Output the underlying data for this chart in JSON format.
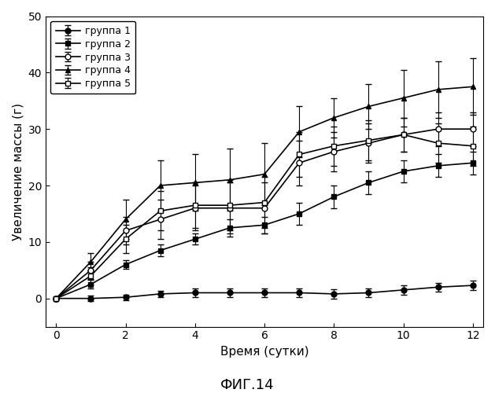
{
  "title": "ФИГ.14",
  "xlabel": "Время (сутки)",
  "ylabel": "Увеличение массы (г)",
  "xlim": [
    -0.3,
    12.3
  ],
  "ylim": [
    -5,
    50
  ],
  "yticks": [
    0,
    10,
    20,
    30,
    40,
    50
  ],
  "xticks": [
    0,
    2,
    4,
    6,
    8,
    10,
    12
  ],
  "groups": [
    {
      "label": "группа 1",
      "marker": "o",
      "marker_fill": "black",
      "line_color": "black",
      "x": [
        0,
        1,
        2,
        3,
        4,
        5,
        6,
        7,
        8,
        9,
        10,
        11,
        12
      ],
      "y": [
        0,
        0.0,
        0.2,
        0.8,
        1.0,
        1.0,
        1.0,
        1.0,
        0.8,
        1.0,
        1.5,
        2.0,
        2.3
      ],
      "yerr": [
        0.1,
        0.5,
        0.5,
        0.5,
        0.7,
        0.7,
        0.7,
        0.7,
        0.8,
        0.8,
        0.8,
        0.8,
        0.8
      ]
    },
    {
      "label": "группа 2",
      "marker": "s",
      "marker_fill": "black",
      "line_color": "black",
      "x": [
        0,
        1,
        2,
        3,
        4,
        5,
        6,
        7,
        8,
        9,
        10,
        11,
        12
      ],
      "y": [
        0,
        2.5,
        6.0,
        8.5,
        10.5,
        12.5,
        13.0,
        15.0,
        18.0,
        20.5,
        22.5,
        23.5,
        24.0
      ],
      "yerr": [
        0.1,
        0.8,
        0.8,
        1.0,
        1.0,
        1.5,
        1.5,
        2.0,
        2.0,
        2.0,
        2.0,
        2.0,
        2.0
      ]
    },
    {
      "label": "группа 3",
      "marker": "o",
      "marker_fill": "white",
      "line_color": "black",
      "x": [
        0,
        1,
        2,
        3,
        4,
        5,
        6,
        7,
        8,
        9,
        10,
        11,
        12
      ],
      "y": [
        0,
        5.0,
        12.0,
        14.0,
        16.0,
        16.0,
        16.0,
        24.0,
        26.0,
        27.5,
        29.0,
        30.0,
        30.0
      ],
      "yerr": [
        0.1,
        1.5,
        2.5,
        3.5,
        4.0,
        4.5,
        4.5,
        4.0,
        3.5,
        3.5,
        3.0,
        3.0,
        3.0
      ]
    },
    {
      "label": "группа 4",
      "marker": "^",
      "marker_fill": "black",
      "line_color": "black",
      "x": [
        0,
        1,
        2,
        3,
        4,
        5,
        6,
        7,
        8,
        9,
        10,
        11,
        12
      ],
      "y": [
        0,
        6.5,
        14.0,
        20.0,
        20.5,
        21.0,
        22.0,
        29.5,
        32.0,
        34.0,
        35.5,
        37.0,
        37.5
      ],
      "yerr": [
        0.1,
        1.5,
        3.5,
        4.5,
        5.0,
        5.5,
        5.5,
        4.5,
        3.5,
        4.0,
        5.0,
        5.0,
        5.0
      ]
    },
    {
      "label": "группа 5",
      "marker": "s",
      "marker_fill": "white",
      "line_color": "black",
      "x": [
        0,
        1,
        2,
        3,
        4,
        5,
        6,
        7,
        8,
        9,
        10,
        11,
        12
      ],
      "y": [
        0,
        4.0,
        10.5,
        15.5,
        16.5,
        16.5,
        17.0,
        25.5,
        27.0,
        28.0,
        29.0,
        27.5,
        27.0
      ],
      "yerr": [
        0.1,
        1.5,
        2.5,
        3.5,
        4.0,
        4.5,
        4.5,
        4.0,
        3.5,
        3.5,
        3.0,
        3.5,
        3.5
      ]
    }
  ],
  "figsize": [
    6.29,
    5.0
  ],
  "dpi": 100,
  "background_color": "#ffffff",
  "font_color": "#000000"
}
